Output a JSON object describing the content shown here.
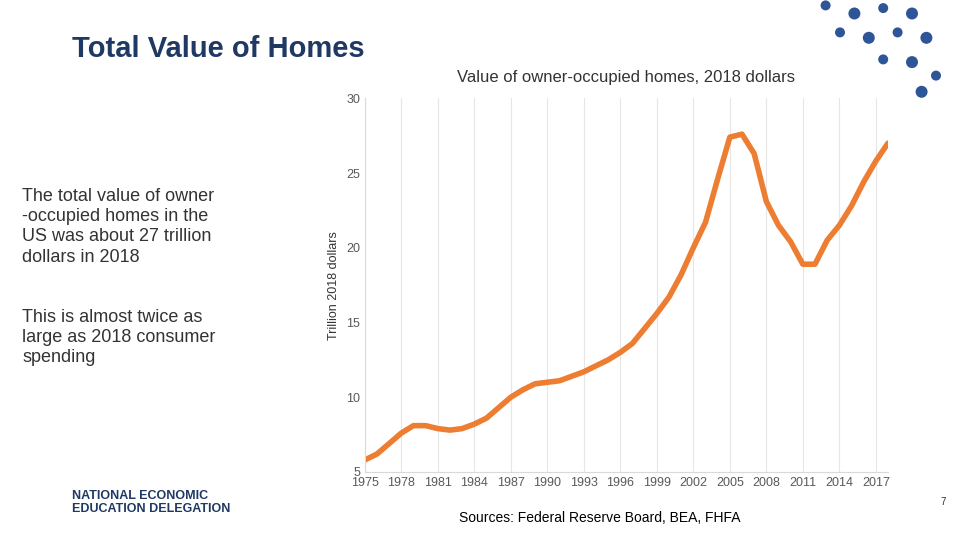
{
  "title": "Total Value of Homes",
  "left_text": [
    "The total value of owner\n-occupied homes in the\nUS was about 27 trillion\ndollars in 2018",
    "This is almost twice as\nlarge as 2018 consumer\nspending"
  ],
  "logo": [
    "NATIONAL ECONOMIC",
    "EDUCATION DELEGATION"
  ],
  "sources": "Sources: Federal Reserve Board, BEA, FHFA",
  "page_number": 7,
  "chart_data": {
    "type": "line",
    "title": "Value of owner-occupied homes, 2018 dollars",
    "y_label": "Trillion 2018 dollars",
    "x": [
      1975,
      1976,
      1977,
      1978,
      1979,
      1980,
      1981,
      1982,
      1983,
      1984,
      1985,
      1986,
      1987,
      1988,
      1989,
      1990,
      1991,
      1992,
      1993,
      1994,
      1995,
      1996,
      1997,
      1998,
      1999,
      2000,
      2001,
      2002,
      2003,
      2004,
      2005,
      2006,
      2007,
      2008,
      2009,
      2010,
      2011,
      2012,
      2013,
      2014,
      2015,
      2016,
      2017,
      2018
    ],
    "values": [
      5.8,
      6.2,
      6.9,
      7.6,
      8.1,
      8.1,
      7.9,
      7.8,
      7.9,
      8.2,
      8.6,
      9.3,
      10.0,
      10.5,
      10.9,
      11.0,
      11.1,
      11.4,
      11.7,
      12.1,
      12.5,
      13.0,
      13.6,
      14.6,
      15.6,
      16.7,
      18.2,
      20.0,
      21.7,
      24.6,
      27.4,
      27.6,
      26.3,
      23.1,
      21.5,
      20.4,
      18.9,
      18.9,
      20.5,
      21.5,
      22.8,
      24.4,
      25.8,
      27.0
    ],
    "color": "#ED7D31",
    "xlim": [
      1975,
      2018
    ],
    "xticks": [
      1975,
      1978,
      1981,
      1984,
      1987,
      1990,
      1993,
      1996,
      1999,
      2002,
      2005,
      2008,
      2011,
      2014,
      2017
    ],
    "ylim": [
      5,
      30
    ],
    "yticks": [
      5,
      10,
      15,
      20,
      25,
      30
    ],
    "grid": true
  }
}
